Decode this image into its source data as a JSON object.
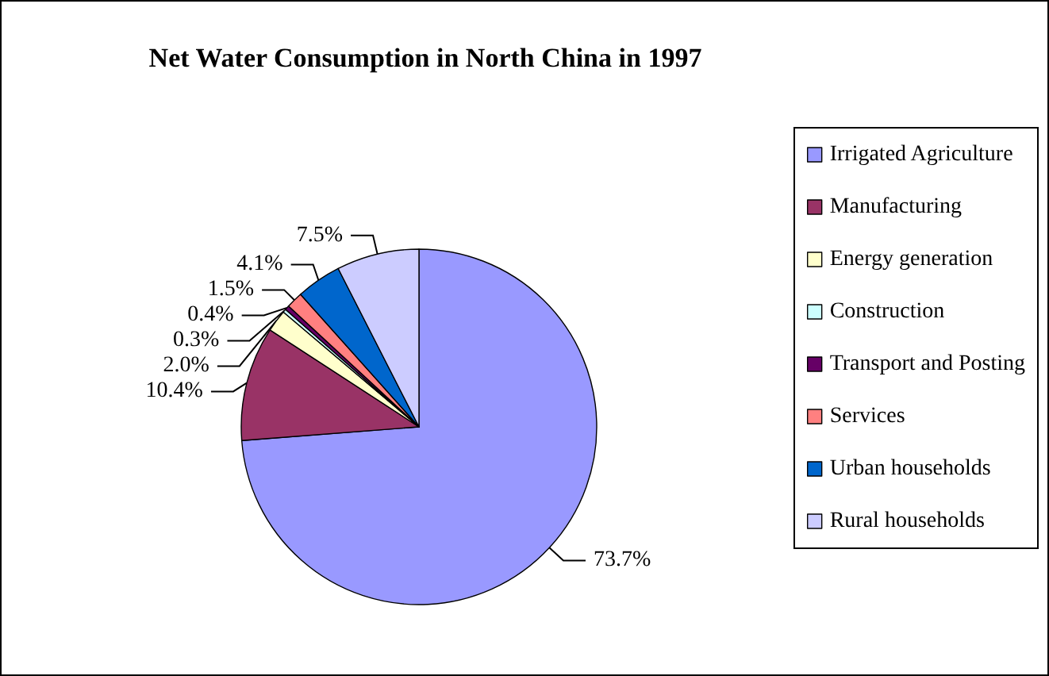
{
  "chart_data": {
    "type": "pie",
    "title": "Net Water Consumption in North China in 1997",
    "categories": [
      "Irrigated Agriculture",
      "Manufacturing",
      "Energy generation",
      "Construction",
      "Transport and Posting",
      "Services",
      "Urban households",
      "Rural households"
    ],
    "values": [
      73.7,
      10.4,
      2.0,
      0.3,
      0.4,
      1.5,
      4.1,
      7.5
    ],
    "value_labels": [
      "73.7%",
      "10.4%",
      "2.0%",
      "0.3%",
      "0.4%",
      "1.5%",
      "4.1%",
      "7.5%"
    ],
    "colors": [
      "#9999ff",
      "#993366",
      "#ffffcc",
      "#ccffff",
      "#660066",
      "#ff8080",
      "#0066cc",
      "#ccccff"
    ],
    "legend": "right"
  }
}
